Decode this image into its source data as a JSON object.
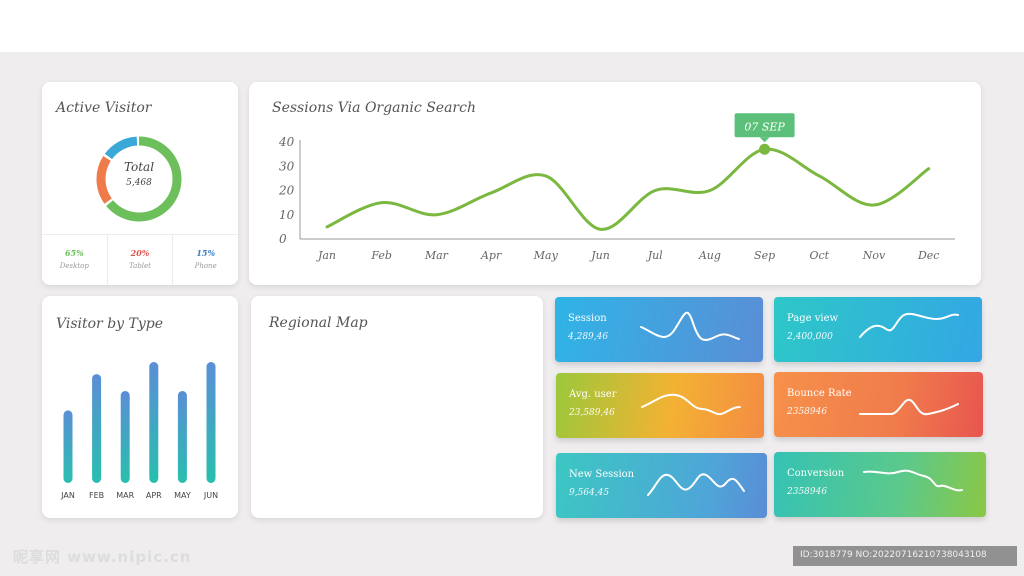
{
  "active_visitor": {
    "title": "Active Visitor",
    "total_label": "Total",
    "total_value": "5,468",
    "segments": [
      {
        "value": 65,
        "color": "#6cbf5a"
      },
      {
        "value": 20,
        "color": "#ef7b4b"
      },
      {
        "value": 15,
        "color": "#3aa9d8"
      }
    ],
    "stats": [
      {
        "percent": "65%",
        "label": "Desktop",
        "color": "#6cbf5a"
      },
      {
        "percent": "20%",
        "label": "Tablet",
        "color": "#e0554f"
      },
      {
        "percent": "15%",
        "label": "Phone",
        "color": "#3a7fc4"
      }
    ]
  },
  "sessions": {
    "title": "Sessions Via Organic Search",
    "tooltip": "07 SEP",
    "chart_data": {
      "type": "line",
      "title": "Sessions Via Organic Search",
      "categories": [
        "Jan",
        "Feb",
        "Mar",
        "Apr",
        "May",
        "Jun",
        "Jul",
        "Aug",
        "Sep",
        "Oct",
        "Nov",
        "Dec"
      ],
      "y_ticks": [
        "40",
        "30",
        "20",
        "10",
        "0"
      ],
      "values": [
        5,
        15,
        10,
        19,
        26,
        4,
        20,
        20,
        37,
        26,
        14,
        29
      ],
      "ylim": [
        0,
        40
      ],
      "highlight_index": 8,
      "color": "#7ab83f",
      "legend": "none",
      "grid": false
    }
  },
  "visitor_by_type": {
    "title": "Visitor by Type",
    "chart_data": {
      "type": "bar",
      "categories": [
        "JAN",
        "FEB",
        "MAR",
        "APR",
        "MAY",
        "JUN"
      ],
      "values": [
        60,
        90,
        76,
        100,
        76,
        100
      ],
      "ylim": [
        0,
        100
      ],
      "colors": [
        "#5b8ed6",
        "#28bfae"
      ],
      "grid": false,
      "legend": "none"
    }
  },
  "regional_map": {
    "title": "Regional Map"
  },
  "tiles": [
    {
      "id": "tile-session",
      "label": "Session",
      "value": "4,289,46"
    },
    {
      "id": "tile-pageview",
      "label": "Page view",
      "value": "2,400,000"
    },
    {
      "id": "tile-avguser",
      "label": "Avg. user",
      "value": "23,589,46"
    },
    {
      "id": "tile-bounce",
      "label": "Bounce Rate",
      "value": "2358946"
    },
    {
      "id": "tile-newsession",
      "label": "New Session",
      "value": "9,564,45"
    },
    {
      "id": "tile-conversion",
      "label": "Conversion",
      "value": "2358946"
    }
  ],
  "watermark": {
    "left": "昵享网 www.nipic.cn",
    "right": "ID:3018779 NO:20220716210738043108"
  }
}
